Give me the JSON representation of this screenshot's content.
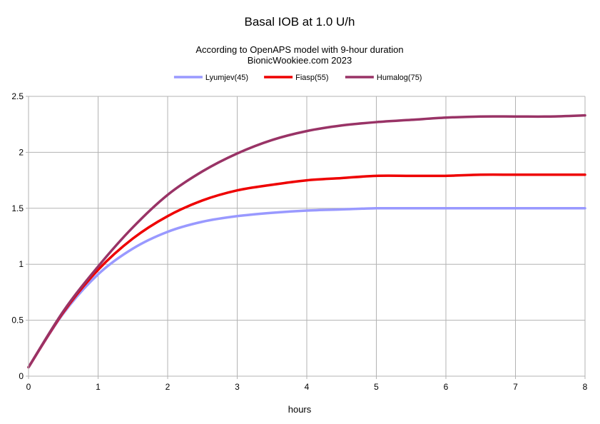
{
  "chart_data": {
    "type": "line",
    "title": "Basal IOB at 1.0 U/h",
    "subtitle_lines": [
      "According to OpenAPS model with 9-hour duration",
      "BionicWookiee.com 2023"
    ],
    "xlabel": "hours",
    "ylabel": "",
    "xlim": [
      0,
      8
    ],
    "ylim": [
      0,
      2.5
    ],
    "x_ticks": [
      "0",
      "1",
      "2",
      "3",
      "4",
      "5",
      "6",
      "7",
      "8"
    ],
    "y_ticks": [
      "0",
      "0.5",
      "1",
      "1.5",
      "2",
      "2.5"
    ],
    "grid": true,
    "legend_position": "top",
    "x": [
      0,
      0.5,
      1,
      1.5,
      2,
      2.5,
      3,
      3.5,
      4,
      4.5,
      5,
      5.5,
      6,
      6.5,
      7,
      7.5,
      8
    ],
    "series": [
      {
        "name": "Lyumjev(45)",
        "color": "#9999ff",
        "values": [
          0.08,
          0.56,
          0.91,
          1.14,
          1.29,
          1.38,
          1.43,
          1.46,
          1.48,
          1.49,
          1.5,
          1.5,
          1.5,
          1.5,
          1.5,
          1.5,
          1.5
        ]
      },
      {
        "name": "Fiasp(55)",
        "color": "#ee0000",
        "values": [
          0.08,
          0.57,
          0.95,
          1.23,
          1.43,
          1.57,
          1.66,
          1.71,
          1.75,
          1.77,
          1.79,
          1.79,
          1.79,
          1.8,
          1.8,
          1.8,
          1.8
        ]
      },
      {
        "name": "Humalog(75)",
        "color": "#993366",
        "values": [
          0.08,
          0.58,
          0.98,
          1.33,
          1.62,
          1.83,
          1.99,
          2.11,
          2.19,
          2.24,
          2.27,
          2.29,
          2.31,
          2.32,
          2.32,
          2.32,
          2.33
        ]
      }
    ]
  }
}
